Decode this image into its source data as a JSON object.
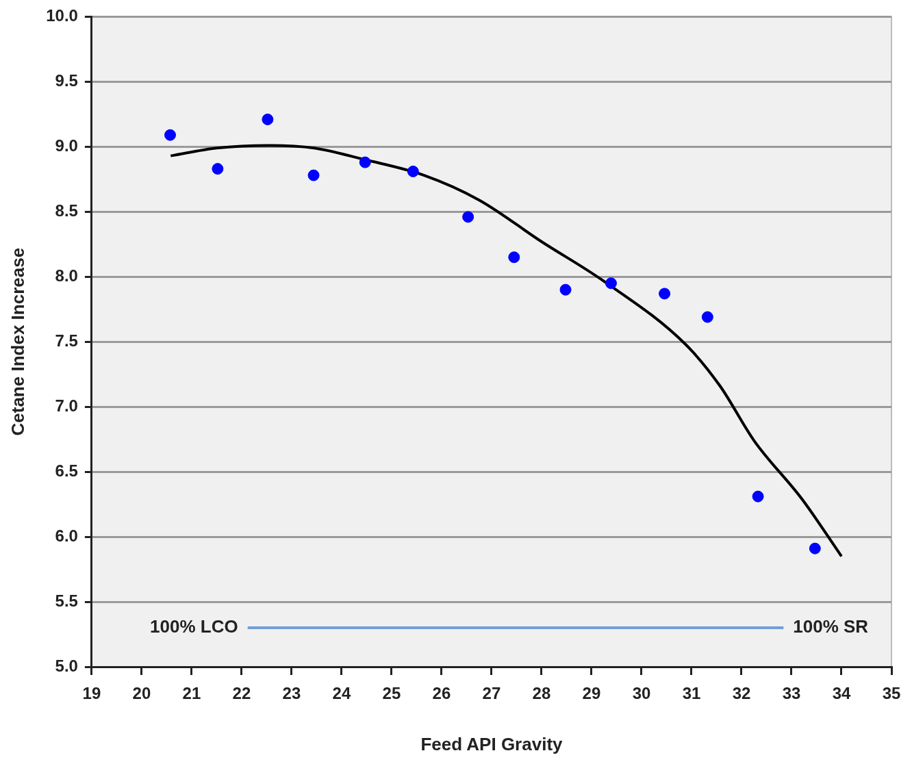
{
  "chart_data": {
    "type": "scatter",
    "xlabel": "Feed API Gravity",
    "ylabel": "Cetane Index Increase",
    "xlim": [
      19,
      35
    ],
    "xticks": [
      19,
      20,
      21,
      22,
      23,
      24,
      25,
      26,
      27,
      28,
      29,
      30,
      31,
      32,
      33,
      34,
      35
    ],
    "ylim": [
      5,
      10
    ],
    "yticks": [
      {
        "value": 5,
        "label": "5.0"
      },
      {
        "value": 5.5,
        "label": "5.5"
      },
      {
        "value": 6,
        "label": "6.0"
      },
      {
        "value": 6.5,
        "label": "6.5"
      },
      {
        "value": 7,
        "label": "7.0"
      },
      {
        "value": 7.5,
        "label": "7.5"
      },
      {
        "value": 8,
        "label": "8.0"
      },
      {
        "value": 8.5,
        "label": "8.5"
      },
      {
        "value": 9,
        "label": "9.0"
      },
      {
        "value": 9.5,
        "label": "9.5"
      },
      {
        "value": 10,
        "label": "10.0"
      }
    ],
    "grid": "y",
    "legend": false,
    "series": [
      {
        "type": "scatter",
        "color": "#0000ff",
        "marker": "circle",
        "x": [
          20.57,
          21.52,
          22.52,
          23.44,
          24.47,
          25.43,
          26.53,
          27.45,
          28.48,
          29.39,
          30.46,
          31.32,
          32.33,
          33.47
        ],
        "values": [
          9.09,
          8.83,
          9.21,
          8.78,
          8.88,
          8.81,
          8.46,
          8.15,
          7.9,
          7.95,
          7.87,
          7.69,
          6.31,
          5.91
        ]
      },
      {
        "type": "line",
        "color": "#000000",
        "marker": "none",
        "line_style": "solid",
        "x": [
          20.58,
          21.5,
          22.56,
          23.45,
          24.47,
          25.65,
          26.75,
          28.0,
          29.23,
          30.88,
          31.57,
          32.25,
          33.21,
          34.0
        ],
        "values": [
          8.93,
          8.99,
          9.01,
          8.99,
          8.9,
          8.78,
          8.59,
          8.27,
          7.97,
          7.48,
          7.16,
          6.74,
          6.29,
          5.85
        ]
      },
      {
        "type": "line",
        "color": "#6f9fd8",
        "marker": "none",
        "line_style": "solid",
        "x": [
          22.12,
          32.84
        ],
        "values": [
          5.3,
          5.3
        ]
      }
    ],
    "annotations": [
      "100% LCO",
      "100% SR"
    ]
  }
}
